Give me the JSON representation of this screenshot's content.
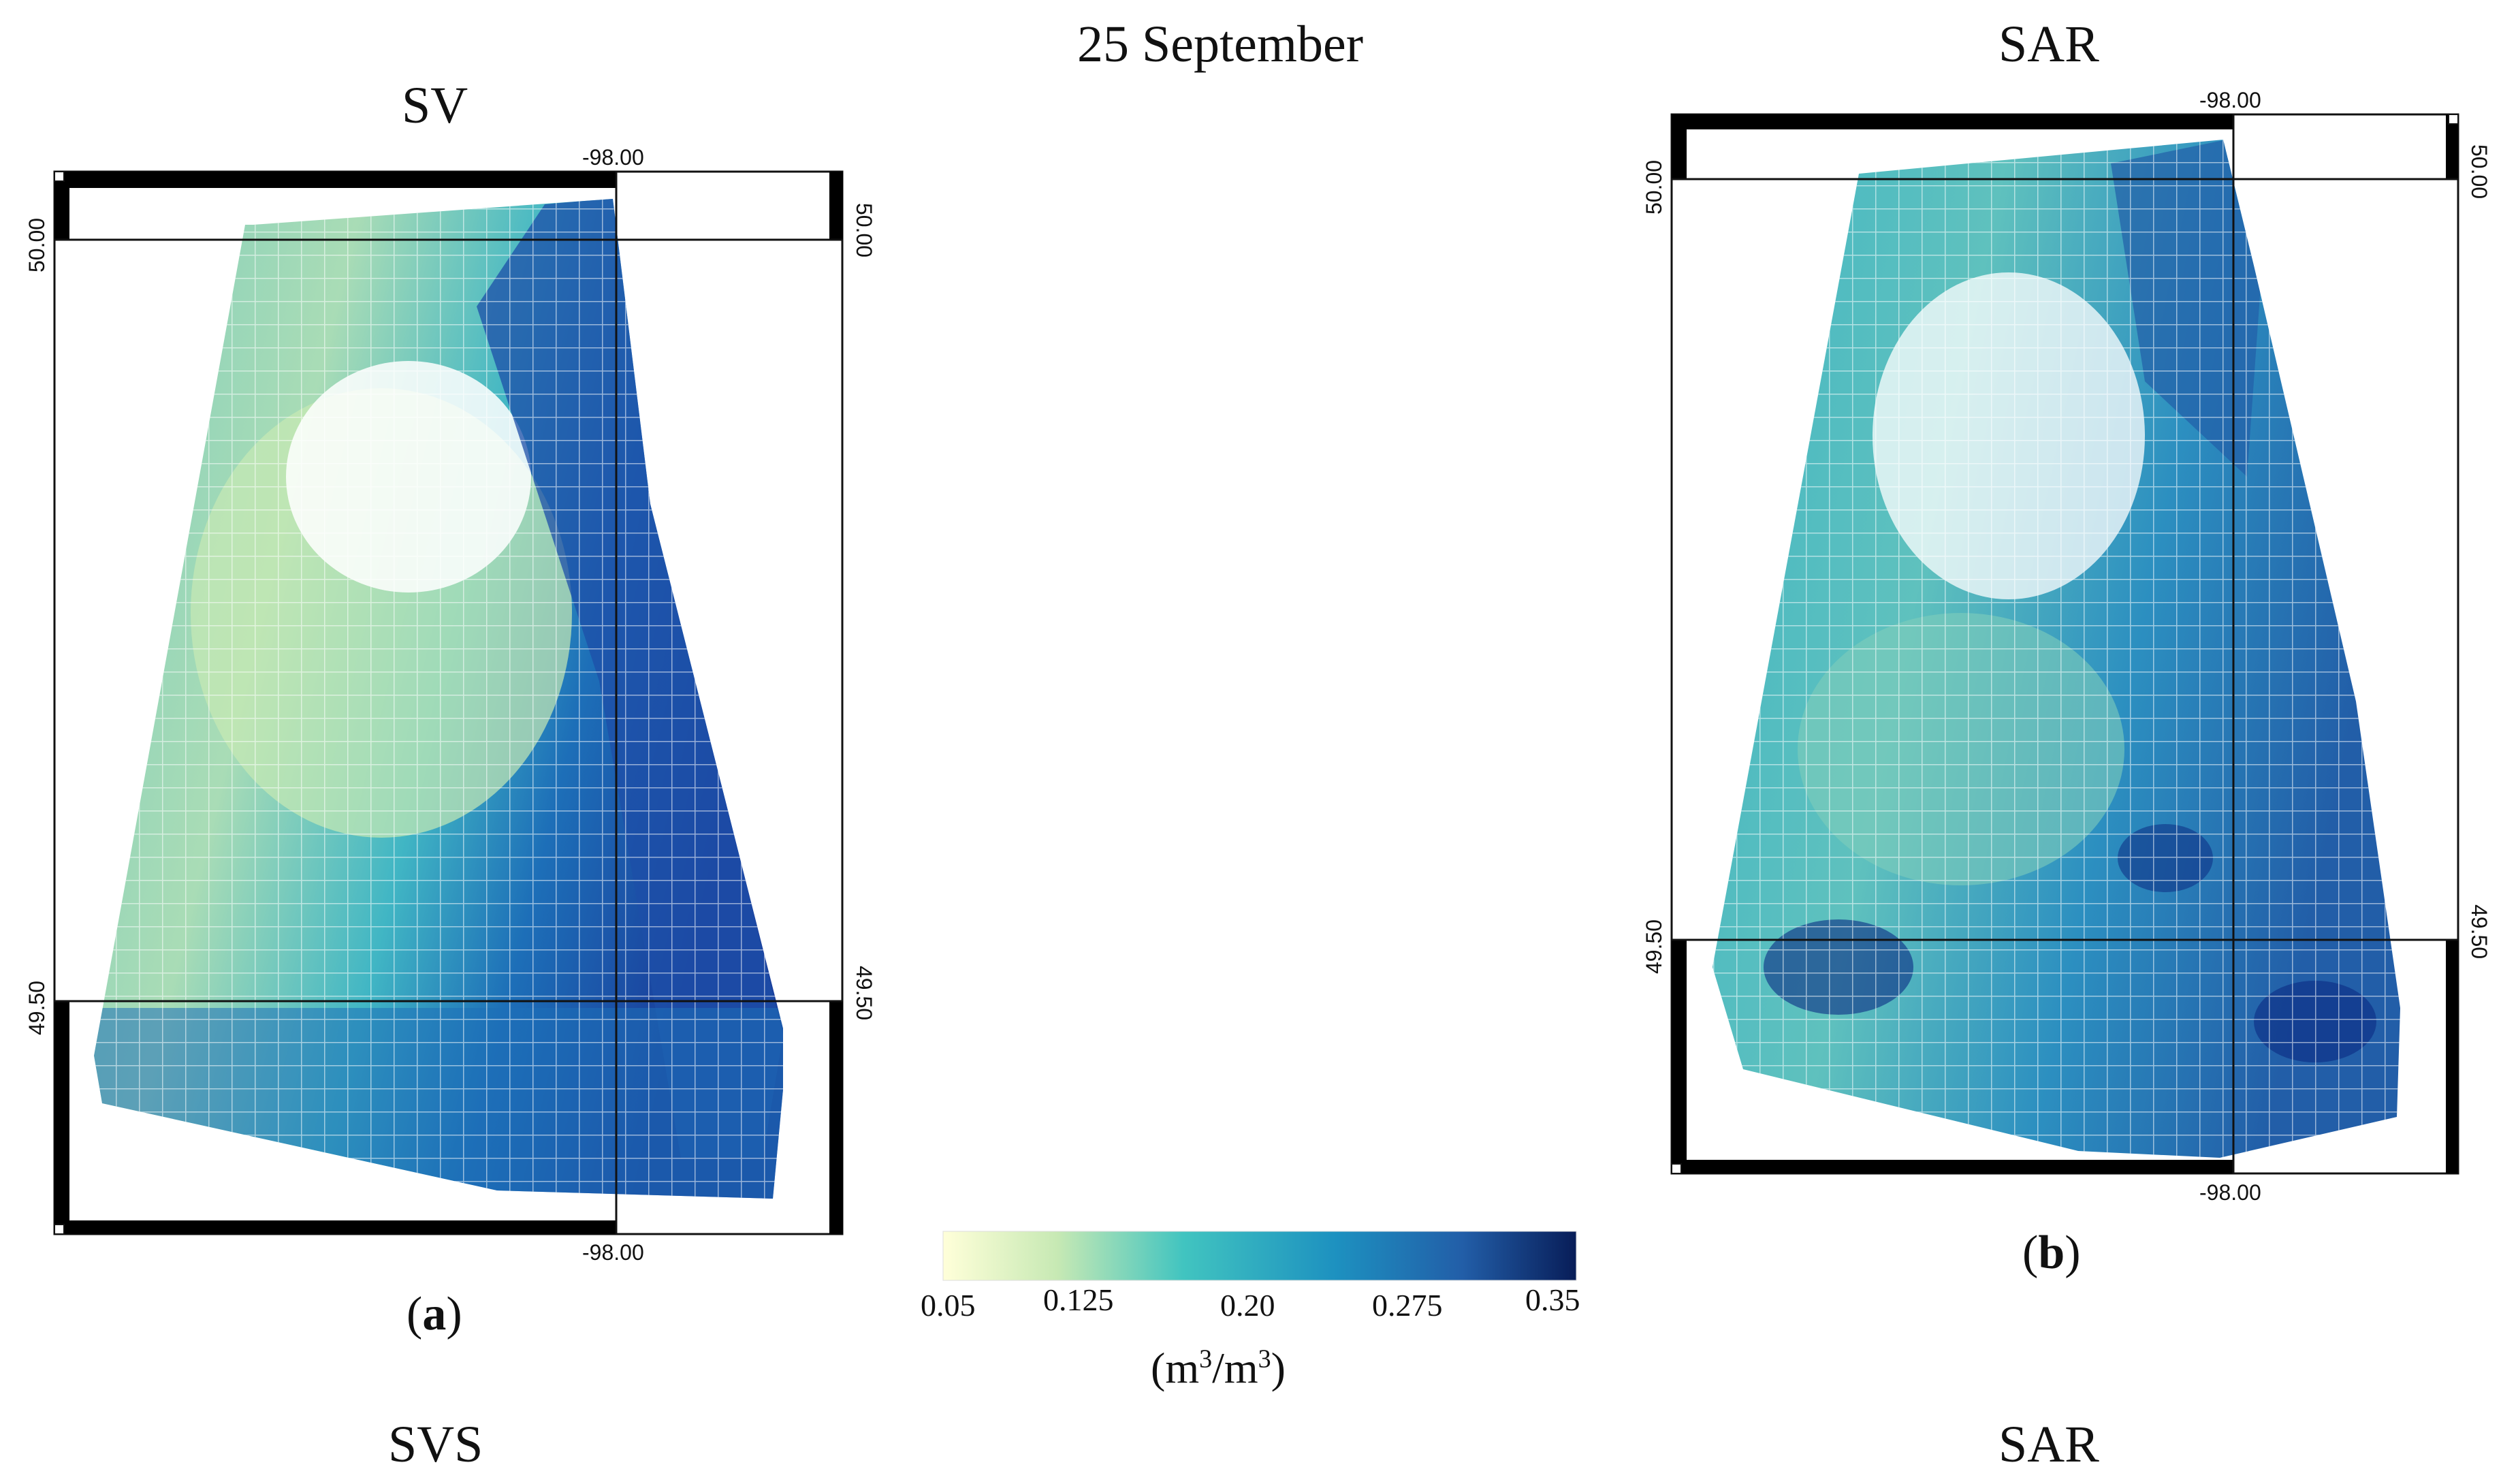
{
  "figure": {
    "date_title": "25 September",
    "bottom_left_title": "SVS",
    "bottom_right_title": "SAR"
  },
  "panel_a": {
    "title": "SV",
    "label_open": "(",
    "label_letter": "a",
    "label_close": ")",
    "lon_label_top": "-98.00",
    "lon_label_bottom": "-98.00",
    "lat_label_top_left": "50.00",
    "lat_label_top_right": "50.00",
    "lat_label_bottom_left": "49.50",
    "lat_label_bottom_right": "49.50"
  },
  "panel_b": {
    "title": "SAR",
    "label_open": "(",
    "label_letter": "b",
    "label_close": ")",
    "lon_label_top": "-98.00",
    "lon_label_bottom": "-98.00",
    "lat_label_top_left": "50.00",
    "lat_label_top_right": "50.00",
    "lat_label_bottom_left": "49.50",
    "lat_label_bottom_right": "49.50"
  },
  "colorbar": {
    "ticks": [
      "0.05",
      "0.125",
      "0.20",
      "0.275",
      "0.35"
    ],
    "tick_values": [
      0.05,
      0.125,
      0.2,
      0.275,
      0.35
    ],
    "unit_open": "(m",
    "unit_sup1": "3",
    "unit_mid": "/m",
    "unit_sup2": "3",
    "unit_close": ")",
    "colors": [
      "#ffffd9",
      "#c7e9b4",
      "#41c4c0",
      "#1d91c0",
      "#225ea8",
      "#081d58"
    ]
  }
}
